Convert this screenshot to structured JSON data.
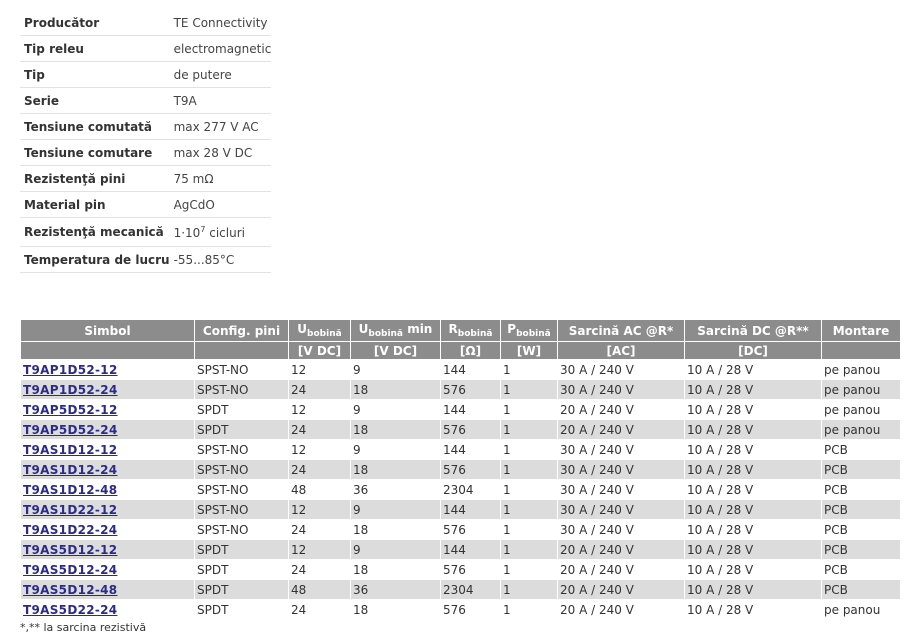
{
  "specs": [
    {
      "label": "Producător",
      "value": "TE Connectivity"
    },
    {
      "label": "Tip releu",
      "value": "electromagnetic"
    },
    {
      "label": "Tip",
      "value": "de putere"
    },
    {
      "label": "Serie",
      "value": "T9A"
    },
    {
      "label": "Tensiune comutată",
      "value": "max 277 V AC"
    },
    {
      "label": "Tensiune comutare",
      "value": "max 28 V DC"
    },
    {
      "label": "Rezistenţă pini",
      "value": "75 mΩ"
    },
    {
      "label": "Material pin",
      "value": "AgCdO"
    },
    {
      "label": "Rezistenţă mecanică",
      "value_base": "1·10",
      "value_exp": "7",
      "value_tail": " cicluri"
    },
    {
      "label": "Temperatura de lucru",
      "value": "-55...85°C"
    }
  ],
  "table": {
    "headers": {
      "symbol": "Simbol",
      "config": "Config. pini",
      "ucoil": {
        "main": "U",
        "sub": "bobină"
      },
      "ucoil_min": {
        "main": "U",
        "sub": "bobină",
        "tail": " min"
      },
      "rcoil": {
        "main": "R",
        "sub": "bobină"
      },
      "pcoil": {
        "main": "P",
        "sub": "bobină"
      },
      "load_ac": "Sarcină AC @R*",
      "load_dc": "Sarcină DC @R**",
      "mount": "Montare"
    },
    "units": {
      "symbol": "",
      "config": "",
      "ucoil": "[V DC]",
      "ucoil_min": "[V DC]",
      "rcoil": "[Ω]",
      "pcoil": "[W]",
      "load_ac": "[AC]",
      "load_dc": "[DC]",
      "mount": ""
    },
    "rows": [
      {
        "symbol": "T9AP1D52-12",
        "config": "SPST-NO",
        "u": "12",
        "umin": "9",
        "r": "144",
        "p": "1",
        "ac": "30 A / 240 V",
        "dc": "10 A / 28 V",
        "mount": "pe panou"
      },
      {
        "symbol": "T9AP1D52-24",
        "config": "SPST-NO",
        "u": "24",
        "umin": "18",
        "r": "576",
        "p": "1",
        "ac": "30 A / 240 V",
        "dc": "10 A / 28 V",
        "mount": "pe panou"
      },
      {
        "symbol": "T9AP5D52-12",
        "config": "SPDT",
        "u": "12",
        "umin": "9",
        "r": "144",
        "p": "1",
        "ac": "20 A / 240 V",
        "dc": "10 A / 28 V",
        "mount": "pe panou"
      },
      {
        "symbol": "T9AP5D52-24",
        "config": "SPDT",
        "u": "24",
        "umin": "18",
        "r": "576",
        "p": "1",
        "ac": "20 A / 240 V",
        "dc": "10 A / 28 V",
        "mount": "pe panou"
      },
      {
        "symbol": "T9AS1D12-12",
        "config": "SPST-NO",
        "u": "12",
        "umin": "9",
        "r": "144",
        "p": "1",
        "ac": "30 A / 240 V",
        "dc": "10 A / 28 V",
        "mount": "PCB"
      },
      {
        "symbol": "T9AS1D12-24",
        "config": "SPST-NO",
        "u": "24",
        "umin": "18",
        "r": "576",
        "p": "1",
        "ac": "30 A / 240 V",
        "dc": "10 A / 28 V",
        "mount": "PCB"
      },
      {
        "symbol": "T9AS1D12-48",
        "config": "SPST-NO",
        "u": "48",
        "umin": "36",
        "r": "2304",
        "p": "1",
        "ac": "30 A / 240 V",
        "dc": "10 A / 28 V",
        "mount": "PCB"
      },
      {
        "symbol": "T9AS1D22-12",
        "config": "SPST-NO",
        "u": "12",
        "umin": "9",
        "r": "144",
        "p": "1",
        "ac": "30 A / 240 V",
        "dc": "10 A / 28 V",
        "mount": "PCB"
      },
      {
        "symbol": "T9AS1D22-24",
        "config": "SPST-NO",
        "u": "24",
        "umin": "18",
        "r": "576",
        "p": "1",
        "ac": "30 A / 240 V",
        "dc": "10 A / 28 V",
        "mount": "PCB"
      },
      {
        "symbol": "T9AS5D12-12",
        "config": "SPDT",
        "u": "12",
        "umin": "9",
        "r": "144",
        "p": "1",
        "ac": "20 A / 240 V",
        "dc": "10 A / 28 V",
        "mount": "PCB"
      },
      {
        "symbol": "T9AS5D12-24",
        "config": "SPDT",
        "u": "24",
        "umin": "18",
        "r": "576",
        "p": "1",
        "ac": "20 A / 240 V",
        "dc": "10 A / 28 V",
        "mount": "PCB"
      },
      {
        "symbol": "T9AS5D12-48",
        "config": "SPDT",
        "u": "48",
        "umin": "36",
        "r": "2304",
        "p": "1",
        "ac": "20 A / 240 V",
        "dc": "10 A / 28 V",
        "mount": "PCB"
      },
      {
        "symbol": "T9AS5D22-24",
        "config": "SPDT",
        "u": "24",
        "umin": "18",
        "r": "576",
        "p": "1",
        "ac": "20 A / 240 V",
        "dc": "10 A / 28 V",
        "mount": "pe panou"
      }
    ]
  },
  "footnote": "*,** la sarcina rezistivă"
}
